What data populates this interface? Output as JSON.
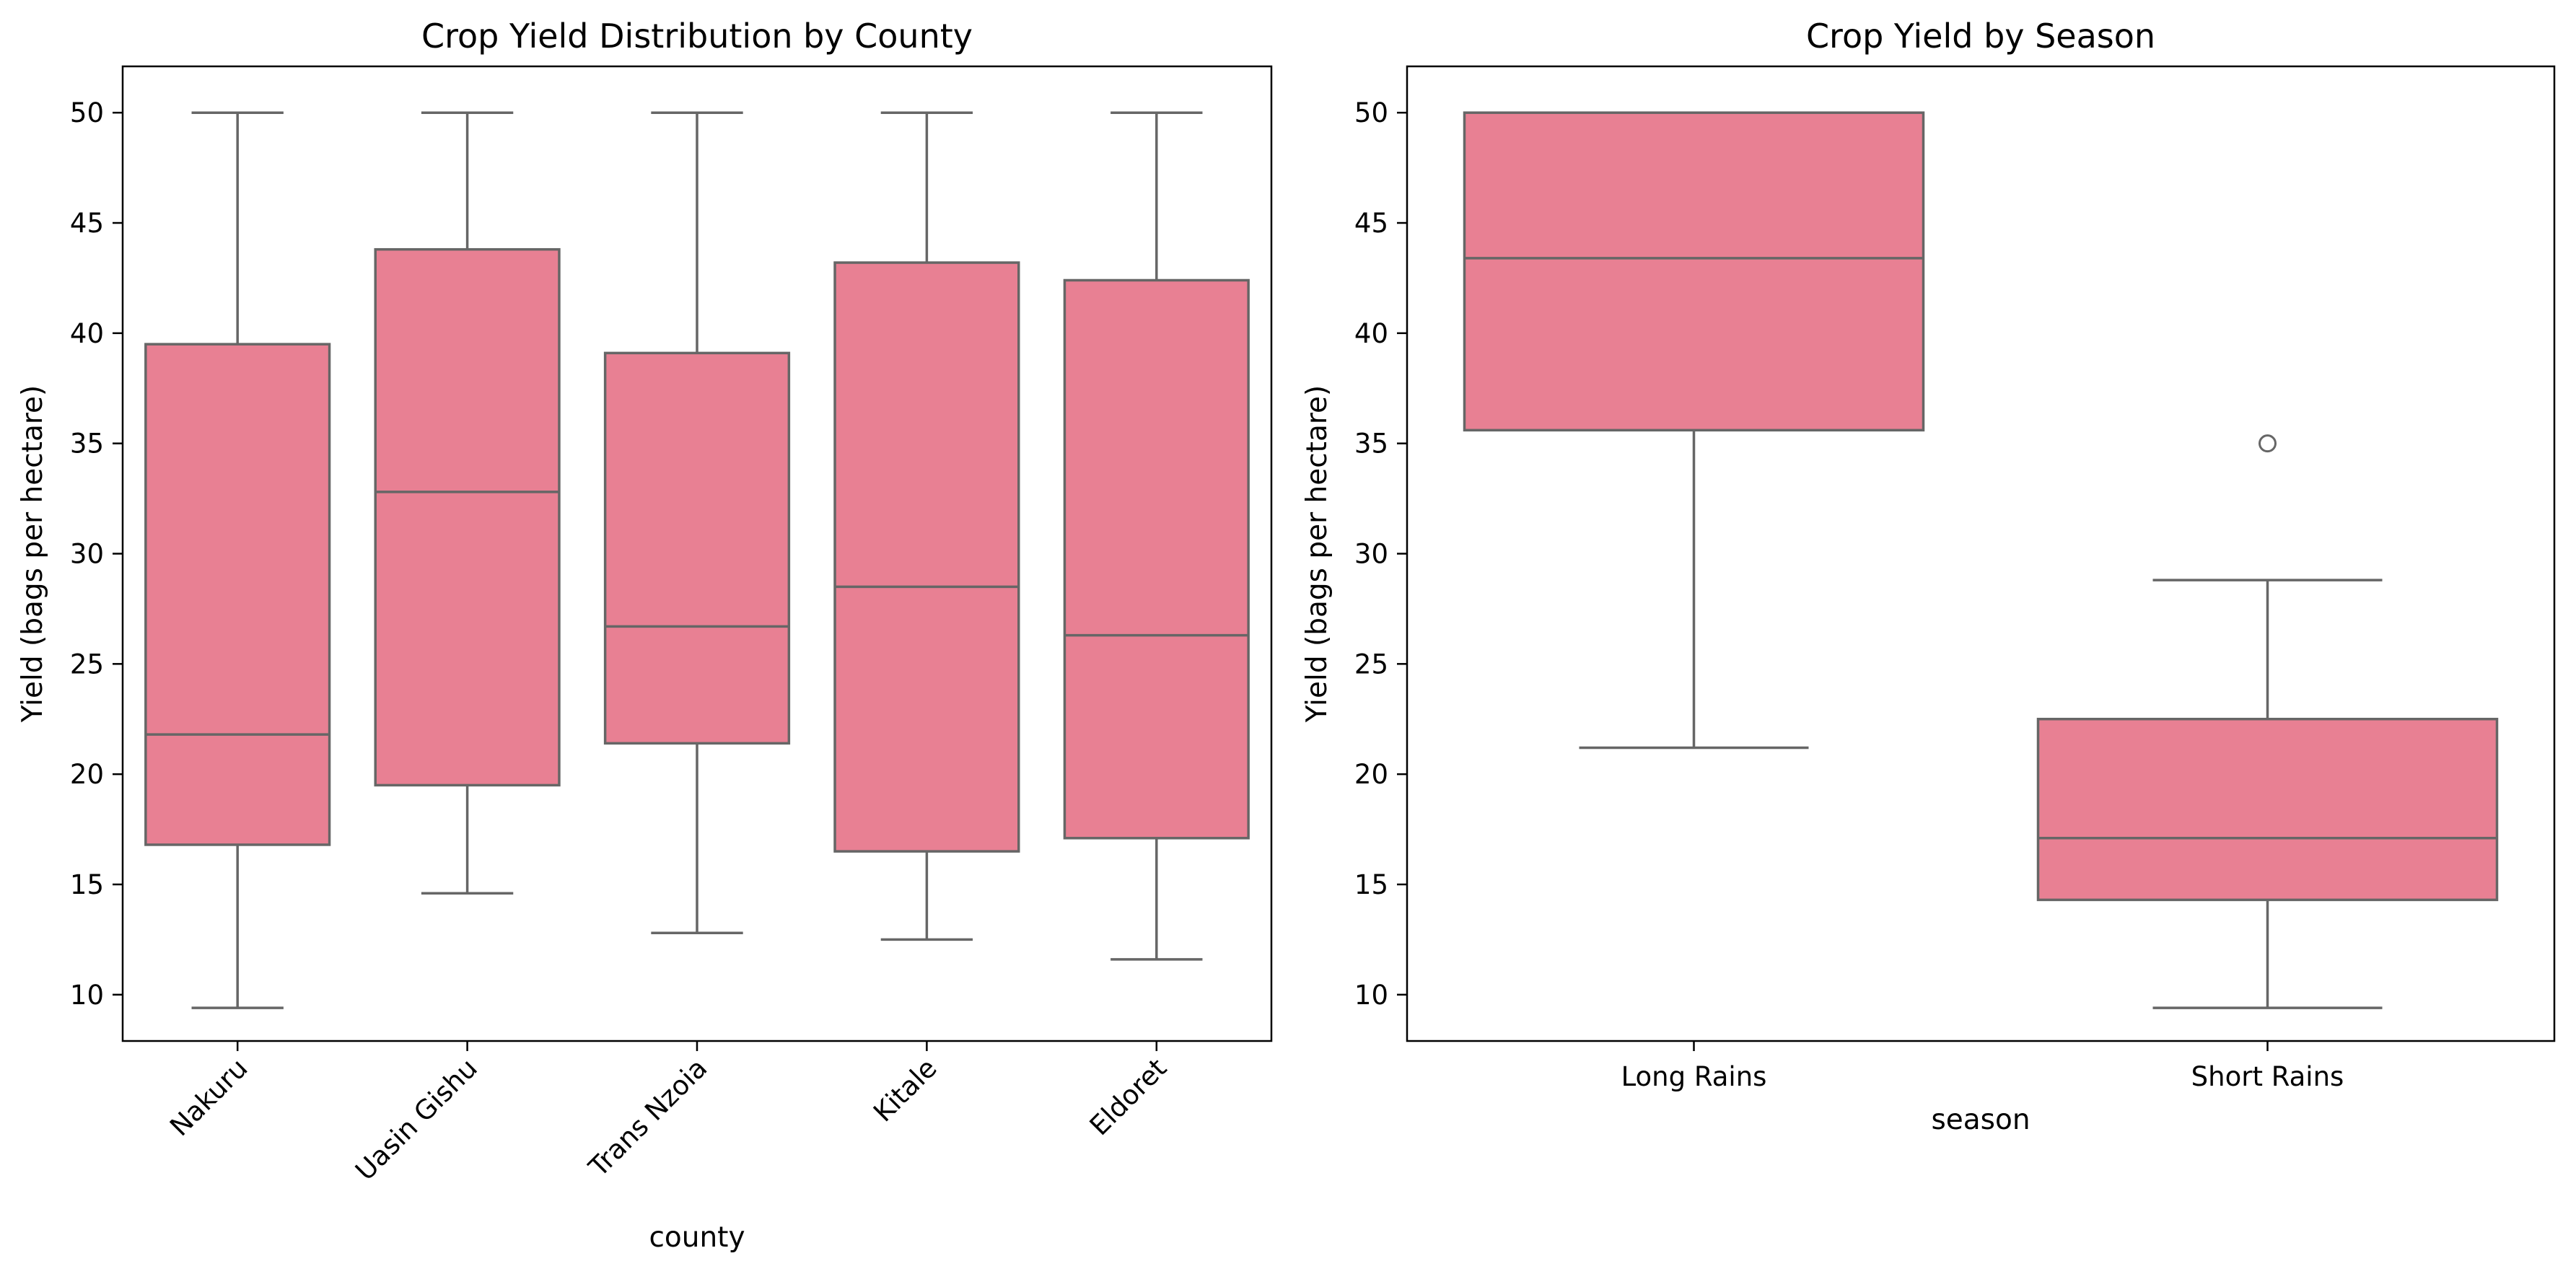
{
  "colors": {
    "box_fill": "#e88093",
    "line": "#666666",
    "axes": "#000000",
    "background": "#ffffff"
  },
  "chart_data": [
    {
      "type": "box",
      "title": "Crop Yield Distribution by County",
      "xlabel": "county",
      "ylabel": "Yield (bags per hectare)",
      "ylim": [
        7.9,
        52.1
      ],
      "yticks": [
        10,
        15,
        20,
        25,
        30,
        35,
        40,
        45,
        50
      ],
      "xtick_rotation": 45,
      "grid": false,
      "categories": [
        "Nakuru",
        "Uasin Gishu",
        "Trans Nzoia",
        "Kitale",
        "Eldoret"
      ],
      "boxes": [
        {
          "whisker_low": 9.4,
          "q1": 16.8,
          "median": 21.8,
          "q3": 39.5,
          "whisker_high": 50.0,
          "outliers": []
        },
        {
          "whisker_low": 14.6,
          "q1": 19.5,
          "median": 32.8,
          "q3": 43.8,
          "whisker_high": 50.0,
          "outliers": []
        },
        {
          "whisker_low": 12.8,
          "q1": 21.4,
          "median": 26.7,
          "q3": 39.1,
          "whisker_high": 50.0,
          "outliers": []
        },
        {
          "whisker_low": 12.5,
          "q1": 16.5,
          "median": 28.5,
          "q3": 43.2,
          "whisker_high": 50.0,
          "outliers": []
        },
        {
          "whisker_low": 11.6,
          "q1": 17.1,
          "median": 26.3,
          "q3": 42.4,
          "whisker_high": 50.0,
          "outliers": []
        }
      ]
    },
    {
      "type": "box",
      "title": "Crop Yield by Season",
      "xlabel": "season",
      "ylabel": "Yield (bags per hectare)",
      "ylim": [
        7.9,
        52.1
      ],
      "yticks": [
        10,
        15,
        20,
        25,
        30,
        35,
        40,
        45,
        50
      ],
      "xtick_rotation": 0,
      "grid": false,
      "categories": [
        "Long Rains",
        "Short Rains"
      ],
      "boxes": [
        {
          "whisker_low": 21.2,
          "q1": 35.6,
          "median": 43.4,
          "q3": 50.0,
          "whisker_high": 50.0,
          "outliers": []
        },
        {
          "whisker_low": 9.4,
          "q1": 14.3,
          "median": 17.1,
          "q3": 22.5,
          "whisker_high": 28.8,
          "outliers": [
            35.0
          ]
        }
      ]
    }
  ]
}
